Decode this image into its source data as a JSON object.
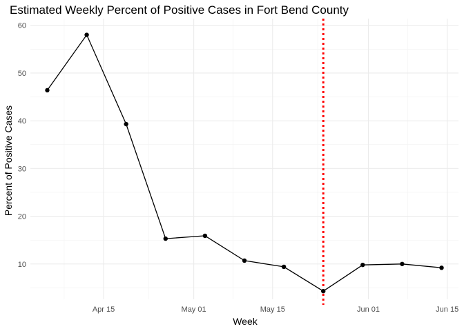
{
  "chart_data": {
    "type": "line",
    "title": "Estimated Weekly Percent of Positive Cases in Fort Bend County",
    "xlabel": "Week",
    "ylabel": "Percent of Positive Cases",
    "x": [
      "2020-04-05",
      "2020-04-12",
      "2020-04-19",
      "2020-04-26",
      "2020-05-03",
      "2020-05-10",
      "2020-05-17",
      "2020-05-24",
      "2020-05-31",
      "2020-06-07",
      "2020-06-14"
    ],
    "series": [
      {
        "values": [
          46.4,
          58.0,
          39.3,
          15.3,
          15.9,
          10.7,
          9.4,
          4.3,
          9.8,
          10.0,
          9.2
        ]
      }
    ],
    "xticks": [
      {
        "date": "2020-04-15",
        "label": "Apr 15"
      },
      {
        "date": "2020-05-01",
        "label": "May 01"
      },
      {
        "date": "2020-05-15",
        "label": "May 15"
      },
      {
        "date": "2020-06-01",
        "label": "Jun 01"
      },
      {
        "date": "2020-06-15",
        "label": "Jun 15"
      }
    ],
    "xminor": [
      "2020-04-08",
      "2020-04-23",
      "2020-05-08",
      "2020-05-23",
      "2020-06-08"
    ],
    "yticks": [
      10,
      20,
      30,
      40,
      50,
      60
    ],
    "ylim": [
      2.6,
      61.4
    ],
    "xlim": [
      "2020-04-02",
      "2020-06-17"
    ],
    "reference_line": {
      "date": "2020-05-24",
      "color": "#ff0000",
      "style": "dotted"
    },
    "grid": true,
    "line_color": "#000000",
    "point_color": "#000000"
  }
}
